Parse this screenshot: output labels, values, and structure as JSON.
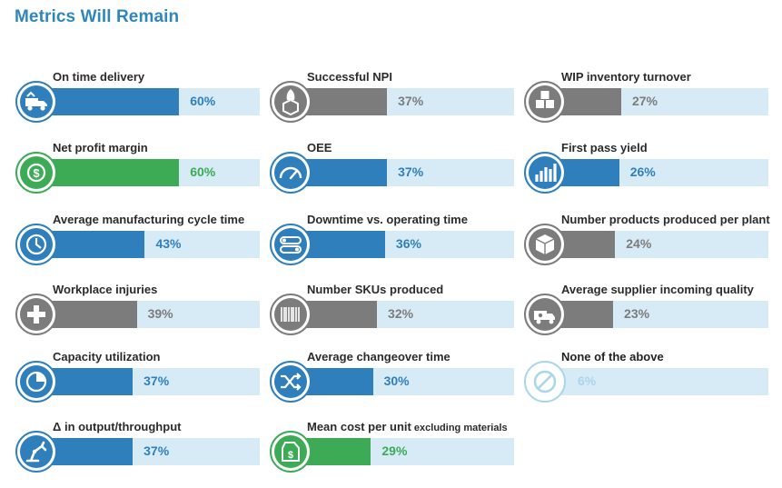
{
  "title": "Metrics Will Remain",
  "colors": {
    "blue": "#2f7fbd",
    "gray": "#7c7c7c",
    "green": "#3daa56",
    "pale": "#aad6ea",
    "track": "#d7ebf6"
  },
  "chart_data": {
    "type": "bar",
    "title": "Metrics Will Remain",
    "unit": "%",
    "xlim": [
      0,
      100
    ],
    "items": [
      {
        "label": "On time delivery",
        "value": 60,
        "value_label": "60%",
        "color": "blue",
        "icon": "delivery-truck-icon"
      },
      {
        "label": "Net profit margin",
        "value": 60,
        "value_label": "60%",
        "color": "green",
        "icon": "dollar-coin-icon"
      },
      {
        "label": "Average manufacturing cycle time",
        "value": 43,
        "value_label": "43%",
        "color": "blue",
        "icon": "clock-cycle-icon"
      },
      {
        "label": "Workplace injuries",
        "value": 39,
        "value_label": "39%",
        "color": "gray",
        "icon": "medical-cross-icon"
      },
      {
        "label": "Capacity utilization",
        "value": 37,
        "value_label": "37%",
        "color": "blue",
        "icon": "pie-gauge-icon"
      },
      {
        "label": "Δ in output/throughput",
        "value": 37,
        "value_label": "37%",
        "color": "blue",
        "icon": "robot-arm-icon"
      },
      {
        "label": "Successful NPI",
        "value": 37,
        "value_label": "37%",
        "color": "gray",
        "icon": "rocket-box-icon"
      },
      {
        "label": "OEE",
        "value": 37,
        "value_label": "37%",
        "color": "blue",
        "icon": "speedometer-icon"
      },
      {
        "label": "Downtime vs. operating time",
        "value": 36,
        "value_label": "36%",
        "color": "blue",
        "icon": "toggle-switch-icon"
      },
      {
        "label": "Number SKUs produced",
        "value": 32,
        "value_label": "32%",
        "color": "gray",
        "icon": "barcode-icon"
      },
      {
        "label": "Average changeover time",
        "value": 30,
        "value_label": "30%",
        "color": "blue",
        "icon": "shuffle-arrows-icon"
      },
      {
        "label": "Mean cost per unit",
        "label_suffix": "excluding materials",
        "value": 29,
        "value_label": "29%",
        "color": "green",
        "icon": "price-tag-icon"
      },
      {
        "label": "WIP inventory turnover",
        "value": 27,
        "value_label": "27%",
        "color": "gray",
        "icon": "stacked-boxes-icon"
      },
      {
        "label": "First pass yield",
        "value": 26,
        "value_label": "26%",
        "color": "blue",
        "icon": "bar-chart-icon"
      },
      {
        "label": "Number products produced per plant",
        "value": 24,
        "value_label": "24%",
        "color": "gray",
        "icon": "cube-icon"
      },
      {
        "label": "Average supplier incoming quality",
        "value": 23,
        "value_label": "23%",
        "color": "gray",
        "icon": "gear-truck-icon"
      },
      {
        "label": "None of the above",
        "value": 6,
        "value_label": "6%",
        "color": "pale",
        "icon": "no-symbol-icon"
      }
    ]
  }
}
